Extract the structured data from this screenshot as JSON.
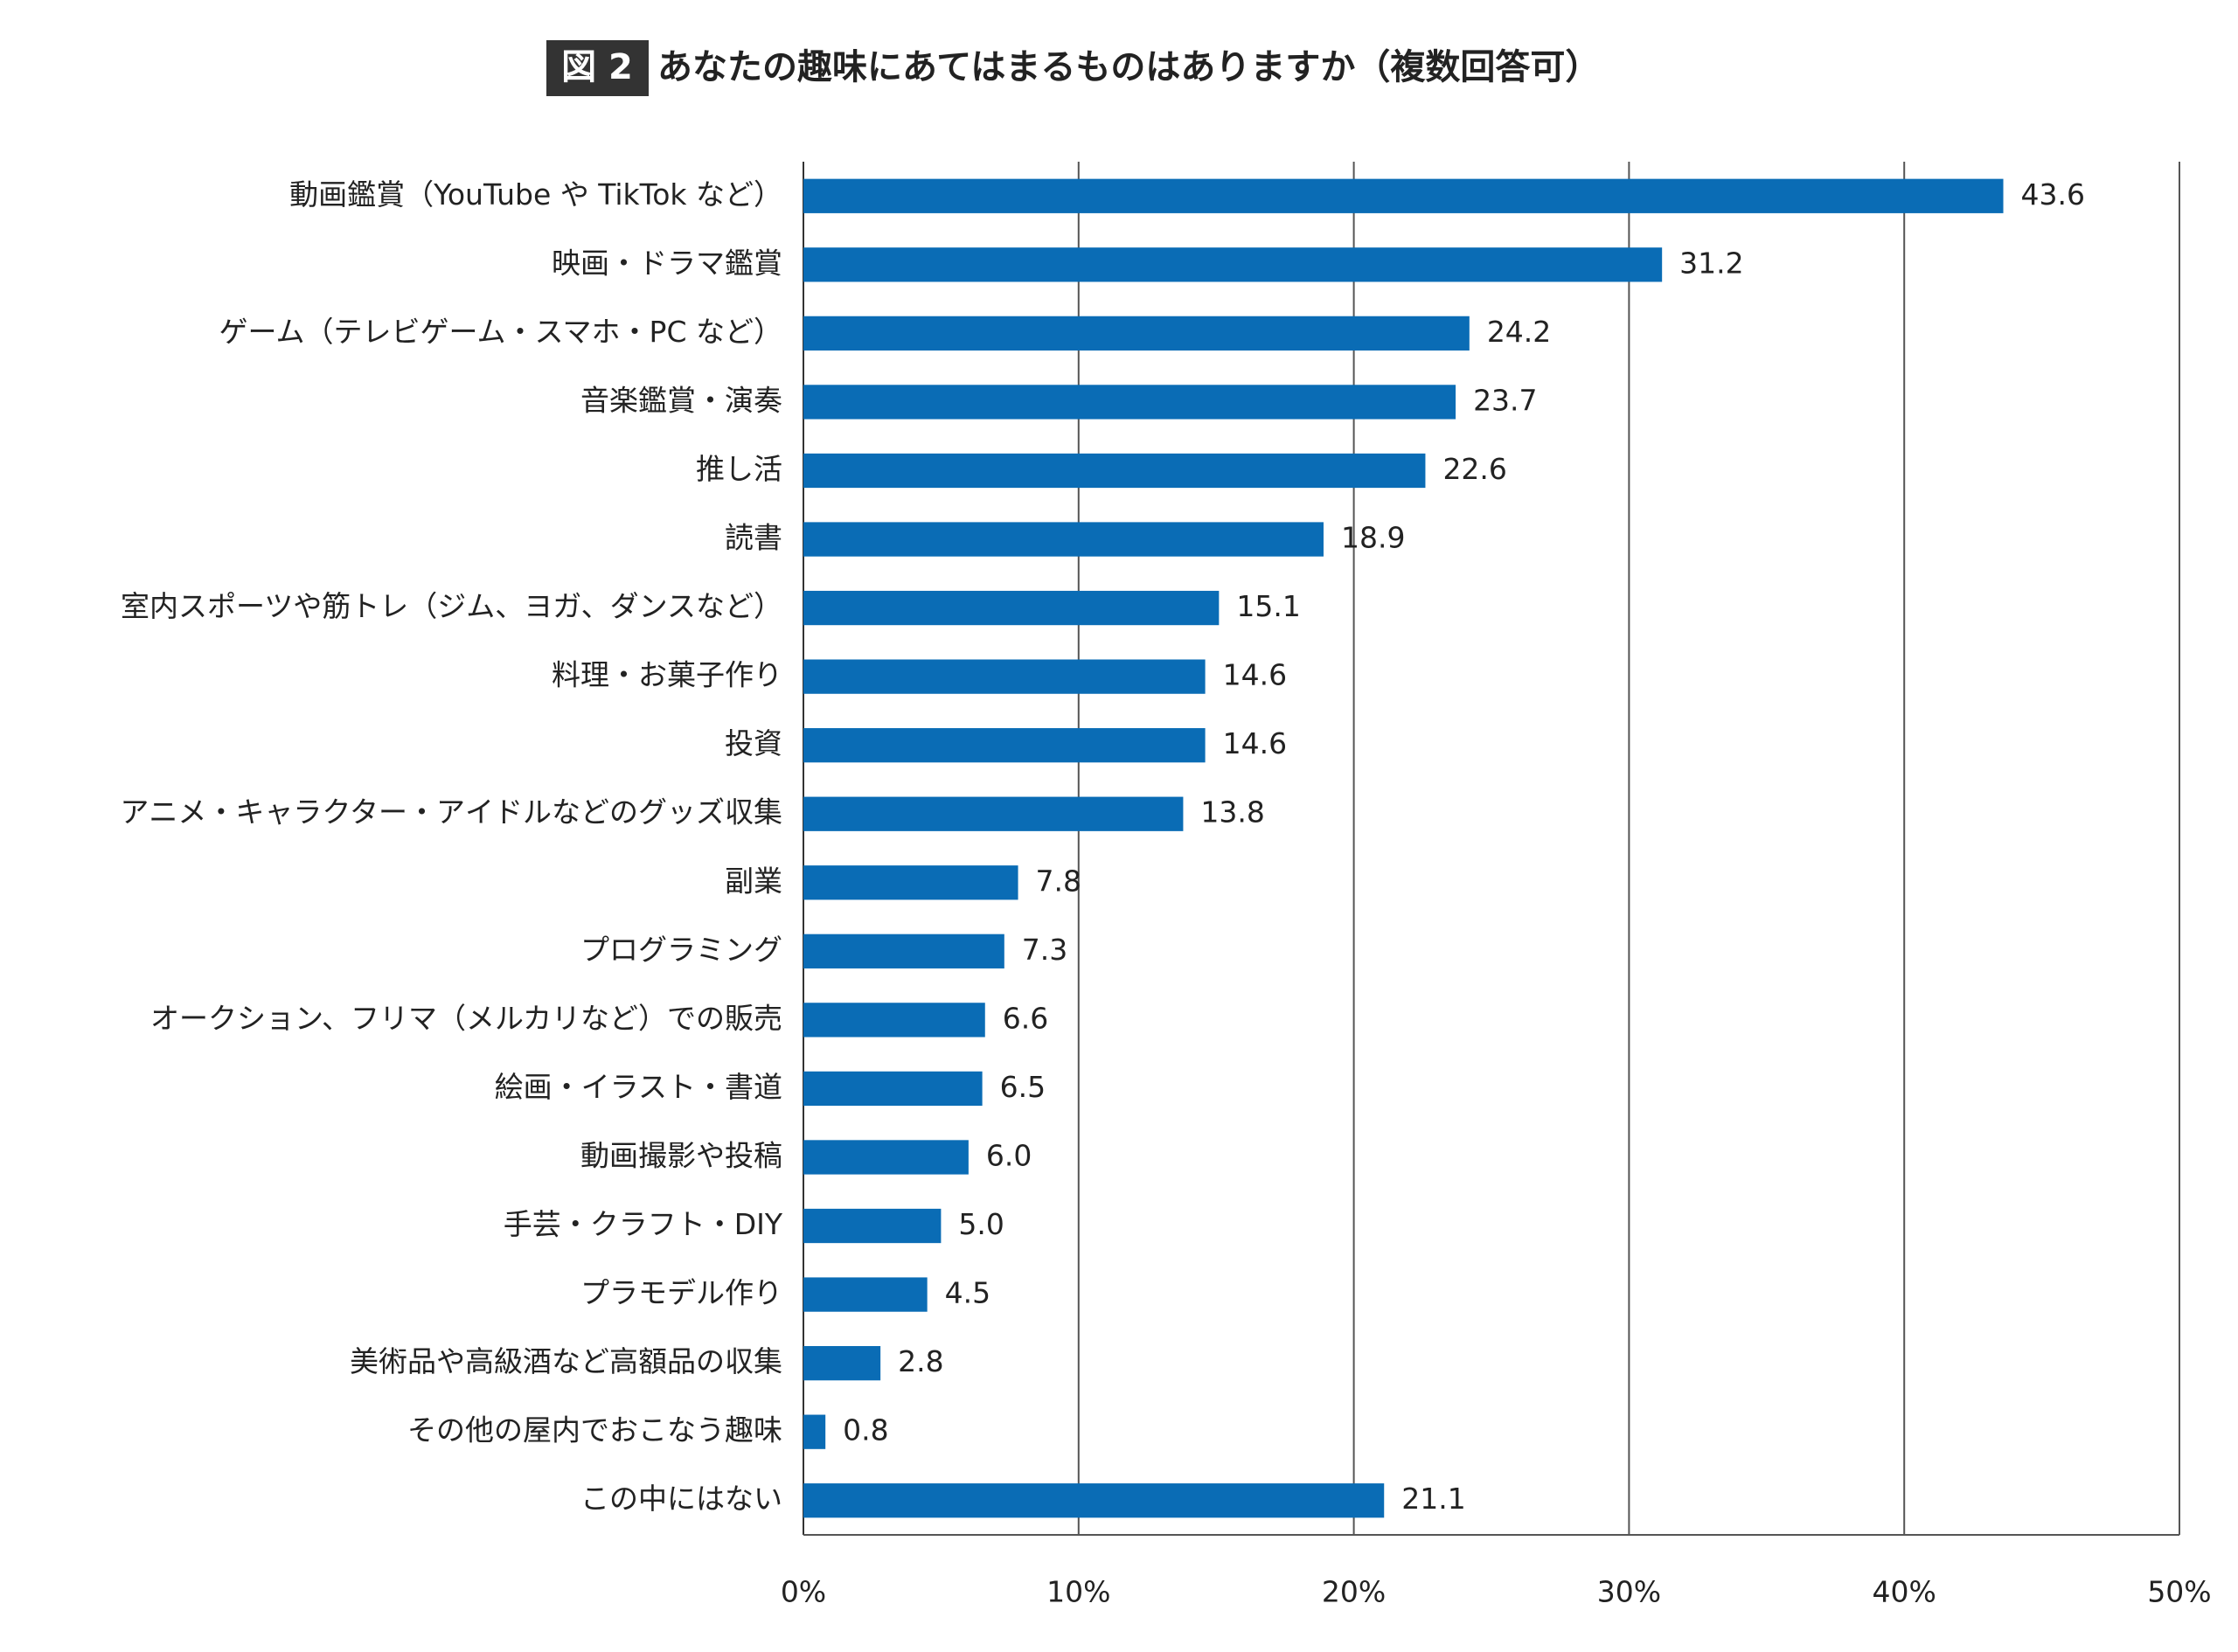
{
  "chart_data": {
    "type": "barh",
    "title_label": "図 2",
    "title": "あなたの趣味にあてはまるものはありますか（複数回答可）",
    "categories": [
      "動画鑑賞（YouTube や TikTok など）",
      "映画・ドラマ鑑賞",
      "ゲーム（テレビゲーム・スマホ・PC など）",
      "音楽鑑賞・演奏",
      "推し活",
      "読書",
      "室内スポーツや筋トレ（ジム、ヨガ、ダンスなど）",
      "料理・お菓子作り",
      "投資",
      "アニメ・キャラクター・アイドルなどのグッズ収集",
      "副業",
      "プログラミング",
      "オークション、フリマ（メルカリなど）での販売",
      "絵画・イラスト・書道",
      "動画撮影や投稿",
      "手芸・クラフト・DIY",
      "プラモデル作り",
      "美術品や高級酒など高額品の収集",
      "その他の屋内でおこなう趣味",
      "この中にはない"
    ],
    "values": [
      43.6,
      31.2,
      24.2,
      23.7,
      22.6,
      18.9,
      15.1,
      14.6,
      14.6,
      13.8,
      7.8,
      7.3,
      6.6,
      6.5,
      6.0,
      5.0,
      4.5,
      2.8,
      0.8,
      21.1
    ],
    "value_labels": [
      "43.6",
      "31.2",
      "24.2",
      "23.7",
      "22.6",
      "18.9",
      "15.1",
      "14.6",
      "14.6",
      "13.8",
      "7.8",
      "7.3",
      "6.6",
      "6.5",
      "6.0",
      "5.0",
      "4.5",
      "2.8",
      "0.8",
      "21.1"
    ],
    "color": "#0a6cb5",
    "xlim": [
      0,
      50
    ],
    "xticks": [
      {
        "value": 0,
        "label": "0%"
      },
      {
        "value": 10,
        "label": "10%"
      },
      {
        "value": 20,
        "label": "20%"
      },
      {
        "value": 30,
        "label": "30%"
      },
      {
        "value": 40,
        "label": "40%"
      },
      {
        "value": 50,
        "label": "50%"
      }
    ],
    "grid": true
  }
}
